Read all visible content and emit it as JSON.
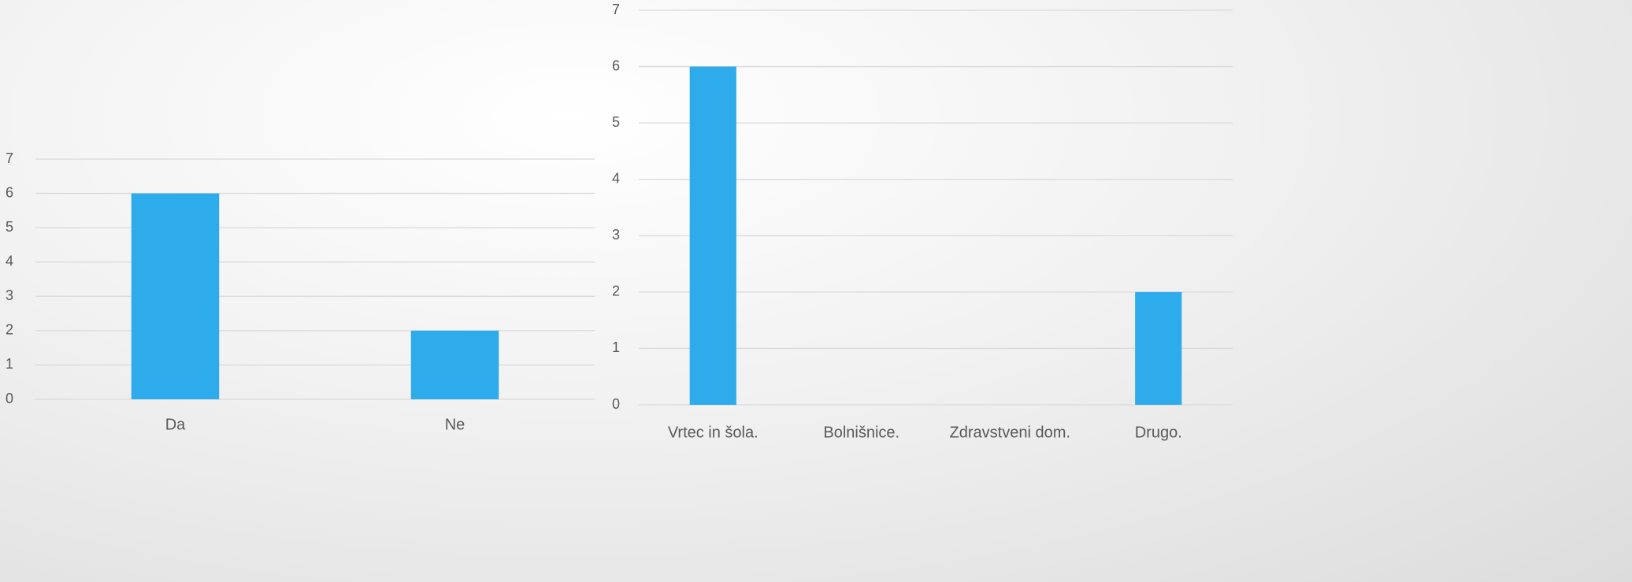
{
  "chart_data": [
    {
      "type": "bar",
      "categories": [
        "Da",
        "Ne"
      ],
      "values": [
        6,
        2
      ],
      "color": "#2eabeb",
      "ylim": [
        0,
        7
      ],
      "yticks": [
        0,
        1,
        2,
        3,
        4,
        5,
        6,
        7
      ],
      "grid": true
    },
    {
      "type": "bar",
      "categories": [
        "Vrtec in šola.",
        "Bolnišnice.",
        "Zdravstveni dom.",
        "Drugo."
      ],
      "values": [
        6,
        0,
        0,
        2
      ],
      "color": "#2eabeb",
      "ylim": [
        0,
        7
      ],
      "yticks": [
        0,
        1,
        2,
        3,
        4,
        5,
        6,
        7
      ],
      "grid": true
    }
  ]
}
